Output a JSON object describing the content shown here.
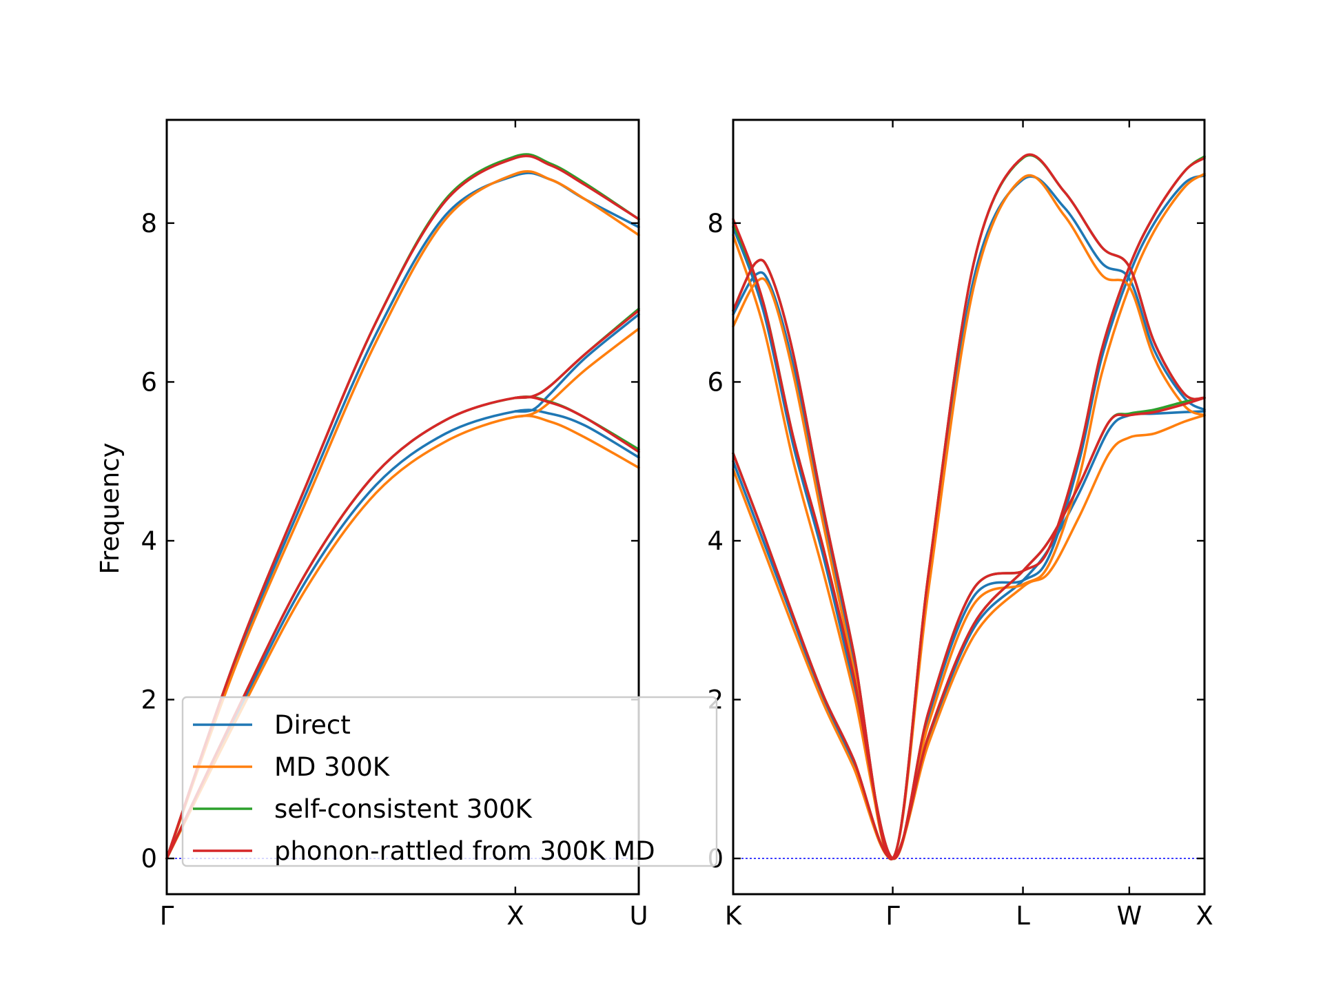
{
  "chart_data": [
    {
      "type": "line",
      "panel": "left",
      "ylabel": "Frequency",
      "ylim": [
        -0.45,
        9.3
      ],
      "yticks": [
        "0",
        "2",
        "4",
        "6",
        "8"
      ],
      "x_tick_labels": [
        "Γ",
        "X",
        "U"
      ],
      "x_tick_positions": [
        0,
        1,
        1.354
      ],
      "xlim": [
        0,
        1.354
      ],
      "colors": {
        "Direct": "#1f77b4",
        "MD 300K": "#ff7f0e",
        "self-consistent 300K": "#2ca02c",
        "phonon-rattled from 300K MD": "#d62728"
      },
      "series": [
        {
          "name": "Direct",
          "bands": [
            {
              "x": [
                0,
                0.2,
                0.4,
                0.6,
                0.8,
                1.0,
                1.1,
                1.2,
                1.354
              ],
              "y": [
                0,
                2.5,
                4.6,
                6.6,
                8.1,
                8.6,
                8.55,
                8.3,
                7.95
              ]
            },
            {
              "x": [
                0,
                0.2,
                0.4,
                0.6,
                0.8,
                1.0,
                1.1,
                1.2,
                1.354
              ],
              "y": [
                0,
                1.8,
                3.5,
                4.7,
                5.35,
                5.63,
                5.6,
                5.45,
                5.05
              ]
            },
            {
              "x": [
                1.0,
                1.05,
                1.1,
                1.2,
                1.354
              ],
              "y": [
                5.63,
                5.65,
                5.85,
                6.3,
                6.85
              ]
            }
          ]
        },
        {
          "name": "MD 300K",
          "bands": [
            {
              "x": [
                0,
                0.2,
                0.4,
                0.6,
                0.8,
                1.0,
                1.1,
                1.2,
                1.354
              ],
              "y": [
                0,
                2.45,
                4.5,
                6.5,
                8.05,
                8.62,
                8.55,
                8.3,
                7.85
              ]
            },
            {
              "x": [
                0,
                0.2,
                0.4,
                0.6,
                0.8,
                1.0,
                1.1,
                1.2,
                1.354
              ],
              "y": [
                0,
                1.75,
                3.4,
                4.6,
                5.25,
                5.56,
                5.5,
                5.3,
                4.92
              ]
            },
            {
              "x": [
                1.0,
                1.05,
                1.1,
                1.2,
                1.354
              ],
              "y": [
                5.56,
                5.6,
                5.75,
                6.15,
                6.67
              ]
            }
          ]
        },
        {
          "name": "self-consistent 300K",
          "bands": [
            {
              "x": [
                0,
                0.2,
                0.4,
                0.6,
                0.8,
                1.0,
                1.1,
                1.2,
                1.354
              ],
              "y": [
                0,
                2.55,
                4.7,
                6.75,
                8.3,
                8.84,
                8.75,
                8.5,
                8.05
              ]
            },
            {
              "x": [
                0,
                0.2,
                0.4,
                0.6,
                0.8,
                1.0,
                1.1,
                1.2,
                1.354
              ],
              "y": [
                0,
                1.85,
                3.6,
                4.85,
                5.52,
                5.8,
                5.75,
                5.55,
                5.15
              ]
            },
            {
              "x": [
                1.0,
                1.05,
                1.1,
                1.2,
                1.354
              ],
              "y": [
                5.8,
                5.82,
                5.95,
                6.35,
                6.92
              ]
            }
          ]
        },
        {
          "name": "phonon-rattled from 300K MD",
          "bands": [
            {
              "x": [
                0,
                0.2,
                0.4,
                0.6,
                0.8,
                1.0,
                1.1,
                1.2,
                1.354
              ],
              "y": [
                0,
                2.55,
                4.7,
                6.75,
                8.28,
                8.82,
                8.73,
                8.48,
                8.05
              ]
            },
            {
              "x": [
                0,
                0.2,
                0.4,
                0.6,
                0.8,
                1.0,
                1.1,
                1.2,
                1.354
              ],
              "y": [
                0,
                1.85,
                3.6,
                4.85,
                5.52,
                5.8,
                5.74,
                5.55,
                5.12
              ]
            },
            {
              "x": [
                1.0,
                1.05,
                1.1,
                1.2,
                1.354
              ],
              "y": [
                5.8,
                5.82,
                5.95,
                6.35,
                6.9
              ]
            }
          ]
        }
      ]
    },
    {
      "type": "line",
      "panel": "right",
      "ylim": [
        -0.45,
        9.3
      ],
      "yticks": [
        "0",
        "2",
        "4",
        "6",
        "8"
      ],
      "x_tick_labels": [
        "K",
        "Γ",
        "L",
        "W",
        "X"
      ],
      "x_tick_positions": [
        0,
        1.061,
        1.927,
        2.634,
        3.134
      ],
      "xlim": [
        0,
        3.134
      ],
      "series": [
        {
          "name": "Direct",
          "bands": [
            {
              "x": [
                0,
                0.15,
                0.25,
                0.4,
                0.6,
                0.8,
                1.061,
                1.3,
                1.6,
                1.927,
                2.2,
                2.45,
                2.634,
                2.8,
                3.0,
                3.134
              ],
              "y": [
                6.85,
                7.35,
                7.2,
                6.2,
                4.3,
                2.5,
                0,
                3.5,
                7.3,
                8.55,
                8.2,
                7.5,
                7.3,
                6.4,
                5.8,
                5.65
              ]
            },
            {
              "x": [
                0,
                0.2,
                0.4,
                0.6,
                0.8,
                1.061,
                1.3,
                1.6,
                1.927,
                2.1,
                2.3,
                2.45,
                2.634,
                2.8,
                3.0,
                3.134
              ],
              "y": [
                7.95,
                6.9,
                5.2,
                3.8,
                2.2,
                0,
                1.8,
                3.3,
                3.5,
                3.8,
                5.0,
                6.3,
                7.35,
                8.0,
                8.5,
                8.6
              ]
            },
            {
              "x": [
                0,
                0.2,
                0.4,
                0.6,
                0.8,
                1.061,
                1.3,
                1.6,
                1.927,
                2.1,
                2.3,
                2.5,
                2.634,
                2.8,
                3.0,
                3.134
              ],
              "y": [
                5.0,
                4.0,
                3.0,
                2.0,
                1.2,
                0,
                1.5,
                2.9,
                3.5,
                3.9,
                4.6,
                5.4,
                5.58,
                5.6,
                5.62,
                5.63
              ]
            }
          ]
        },
        {
          "name": "MD 300K",
          "bands": [
            {
              "x": [
                0,
                0.15,
                0.25,
                0.4,
                0.6,
                0.8,
                1.061,
                1.3,
                1.6,
                1.927,
                2.2,
                2.45,
                2.634,
                2.8,
                3.0,
                3.134
              ],
              "y": [
                6.7,
                7.25,
                7.15,
                6.1,
                4.2,
                2.4,
                0,
                3.4,
                7.2,
                8.57,
                8.1,
                7.35,
                7.2,
                6.3,
                5.7,
                5.58
              ]
            },
            {
              "x": [
                0,
                0.2,
                0.4,
                0.6,
                0.8,
                1.061,
                1.3,
                1.6,
                1.927,
                2.1,
                2.3,
                2.45,
                2.634,
                2.8,
                3.0,
                3.134
              ],
              "y": [
                7.85,
                6.7,
                5.0,
                3.6,
                2.1,
                0,
                1.7,
                3.2,
                3.45,
                3.7,
                4.8,
                6.1,
                7.2,
                7.9,
                8.45,
                8.62
              ]
            },
            {
              "x": [
                0,
                0.2,
                0.4,
                0.6,
                0.8,
                1.061,
                1.3,
                1.6,
                1.927,
                2.1,
                2.3,
                2.5,
                2.634,
                2.8,
                3.0,
                3.134
              ],
              "y": [
                4.9,
                3.9,
                2.9,
                1.95,
                1.15,
                0,
                1.45,
                2.8,
                3.42,
                3.6,
                4.3,
                5.1,
                5.3,
                5.35,
                5.5,
                5.58
              ]
            }
          ]
        },
        {
          "name": "self-consistent 300K",
          "bands": [
            {
              "x": [
                0,
                0.15,
                0.25,
                0.4,
                0.6,
                0.8,
                1.061,
                1.3,
                1.6,
                1.927,
                2.2,
                2.45,
                2.634,
                2.8,
                3.0,
                3.134
              ],
              "y": [
                6.9,
                7.5,
                7.35,
                6.35,
                4.4,
                2.6,
                0,
                3.6,
                7.5,
                8.82,
                8.4,
                7.7,
                7.45,
                6.5,
                5.85,
                5.8
              ]
            },
            {
              "x": [
                0,
                0.2,
                0.4,
                0.6,
                0.8,
                1.061,
                1.3,
                1.6,
                1.927,
                2.1,
                2.3,
                2.45,
                2.634,
                2.8,
                3.0,
                3.134
              ],
              "y": [
                8.0,
                7.0,
                5.3,
                3.9,
                2.3,
                0,
                1.85,
                3.4,
                3.62,
                3.9,
                5.1,
                6.4,
                7.45,
                8.1,
                8.65,
                8.84
              ]
            },
            {
              "x": [
                0,
                0.2,
                0.4,
                0.6,
                0.8,
                1.061,
                1.3,
                1.6,
                1.927,
                2.1,
                2.3,
                2.5,
                2.634,
                2.8,
                3.0,
                3.134
              ],
              "y": [
                5.1,
                4.1,
                3.05,
                2.05,
                1.25,
                0,
                1.55,
                2.95,
                3.62,
                4.0,
                4.7,
                5.5,
                5.6,
                5.65,
                5.75,
                5.8
              ]
            }
          ]
        },
        {
          "name": "phonon-rattled from 300K MD",
          "bands": [
            {
              "x": [
                0,
                0.15,
                0.25,
                0.4,
                0.6,
                0.8,
                1.061,
                1.3,
                1.6,
                1.927,
                2.2,
                2.45,
                2.634,
                2.8,
                3.0,
                3.134
              ],
              "y": [
                6.9,
                7.5,
                7.35,
                6.35,
                4.4,
                2.6,
                0,
                3.6,
                7.5,
                8.83,
                8.4,
                7.7,
                7.45,
                6.5,
                5.85,
                5.8
              ]
            },
            {
              "x": [
                0,
                0.2,
                0.4,
                0.6,
                0.8,
                1.061,
                1.3,
                1.6,
                1.927,
                2.1,
                2.3,
                2.45,
                2.634,
                2.8,
                3.0,
                3.134
              ],
              "y": [
                8.05,
                7.0,
                5.3,
                3.9,
                2.3,
                0,
                1.85,
                3.4,
                3.62,
                3.9,
                5.1,
                6.4,
                7.45,
                8.1,
                8.65,
                8.82
              ]
            },
            {
              "x": [
                0,
                0.2,
                0.4,
                0.6,
                0.8,
                1.061,
                1.3,
                1.6,
                1.927,
                2.1,
                2.3,
                2.5,
                2.634,
                2.8,
                3.0,
                3.134
              ],
              "y": [
                5.1,
                4.1,
                3.05,
                2.05,
                1.25,
                0,
                1.55,
                2.95,
                3.62,
                4.0,
                4.7,
                5.5,
                5.58,
                5.62,
                5.72,
                5.8
              ]
            }
          ]
        }
      ]
    }
  ],
  "legend": {
    "location": "lower-left",
    "entries": [
      "Direct",
      "MD 300K",
      "self-consistent 300K",
      "phonon-rattled from 300K MD"
    ]
  }
}
